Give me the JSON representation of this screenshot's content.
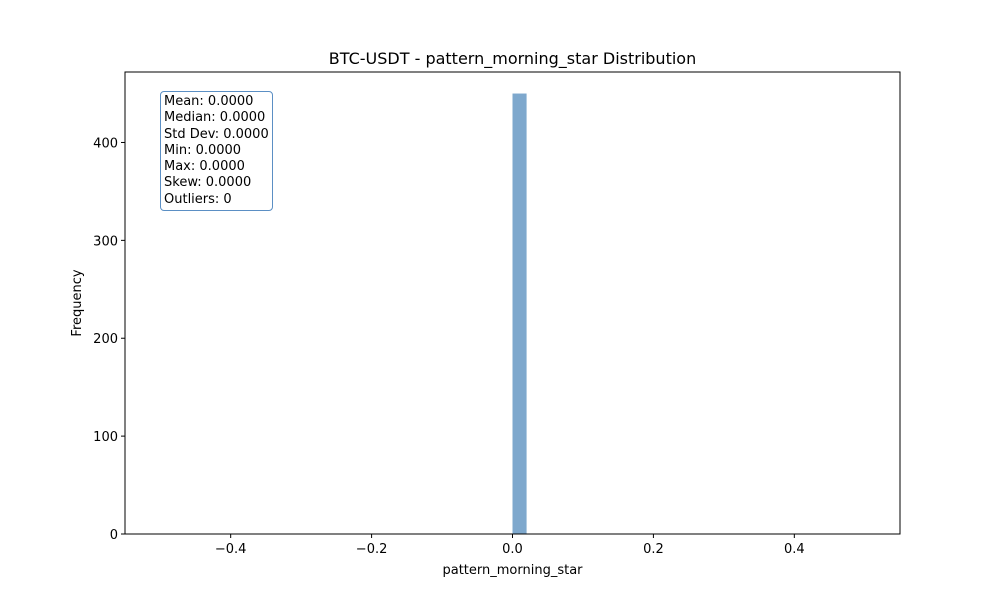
{
  "chart_data": {
    "type": "bar",
    "title": "BTC-USDT - pattern_morning_star Distribution",
    "xlabel": "pattern_morning_star",
    "ylabel": "Frequency",
    "xlim": [
      -0.55,
      0.55
    ],
    "ylim": [
      0,
      472
    ],
    "xticks": [
      -0.4,
      -0.2,
      0.0,
      0.2,
      0.4
    ],
    "xtick_labels": [
      "−0.4",
      "−0.2",
      "0.0",
      "0.2",
      "0.4"
    ],
    "yticks": [
      0,
      100,
      200,
      300,
      400
    ],
    "ytick_labels": [
      "0",
      "100",
      "200",
      "300",
      "400"
    ],
    "bins": [
      {
        "x0": 0.0,
        "x1": 0.02,
        "value": 450
      }
    ],
    "bar_color": "#7ea8cd",
    "grid": false,
    "stats_lines": [
      "Mean: 0.0000",
      "Median: 0.0000",
      "Std Dev: 0.0000",
      "Min: 0.0000",
      "Max: 0.0000",
      "Skew: 0.0000",
      "Outliers: 0"
    ],
    "stats_box_border_color": "#5b8fc4"
  }
}
